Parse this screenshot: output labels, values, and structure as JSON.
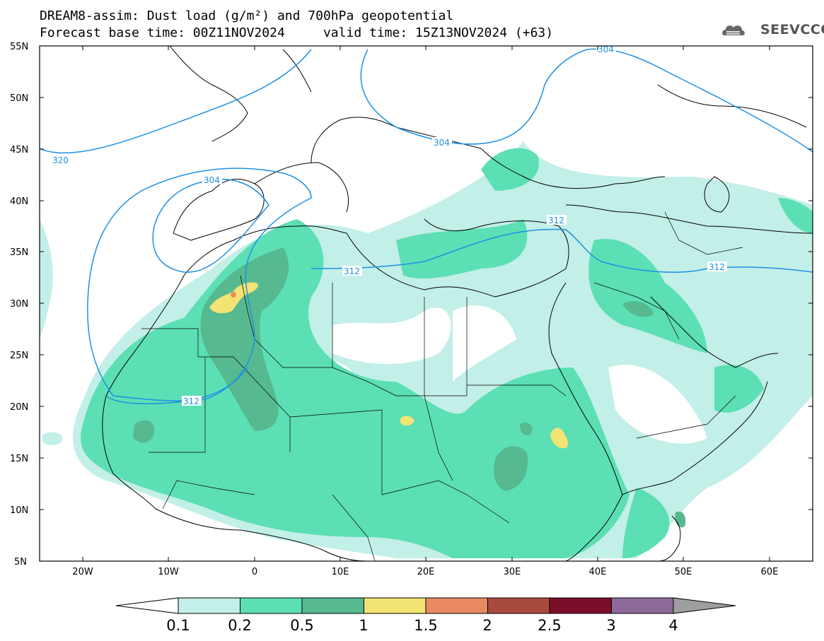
{
  "header": {
    "title_line1": "DREAM8-assim: Dust load (g/m²) and 700hPa geopotential",
    "title_line2": "Forecast base time: 00Z11NOV2024     valid time: 15Z13NOV2024 (+63)"
  },
  "logo": {
    "text": "SEEVCCC",
    "icon": "cloud-logo-icon"
  },
  "map": {
    "lon_range": [
      -25,
      65
    ],
    "lat_range": [
      5,
      55
    ],
    "lat_ticks": [
      "55N",
      "50N",
      "45N",
      "40N",
      "35N",
      "30N",
      "25N",
      "20N",
      "15N",
      "10N",
      "5N"
    ],
    "lon_ticks": [
      "20W",
      "10W",
      "0",
      "10E",
      "20E",
      "30E",
      "40E",
      "50E",
      "60E"
    ],
    "contour_labels": [
      "320",
      "304",
      "304",
      "304",
      "312",
      "312",
      "312",
      "312"
    ],
    "contour_color": "#1e90e6"
  },
  "colorbar": {
    "labels": [
      "0.1",
      "0.2",
      "0.5",
      "1",
      "1.5",
      "2",
      "2.5",
      "3",
      "4"
    ],
    "colors": [
      "#c2efe7",
      "#5cdfb4",
      "#56b98f",
      "#f2e473",
      "#e98a63",
      "#a84a3e",
      "#7b0f2a",
      "#8e6a9c",
      "#9e9e9e"
    ]
  }
}
